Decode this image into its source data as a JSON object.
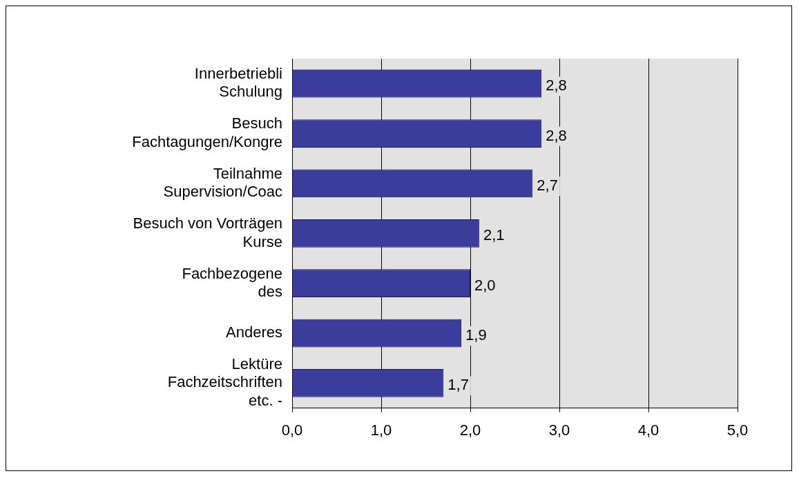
{
  "chart_data": {
    "type": "bar",
    "orientation": "horizontal",
    "categories": [
      "Innerbetriebli\nSchulung",
      "Besuch\nFachtagungen/Kongre",
      "Teilnahme\nSupervision/Coac",
      "Besuch von Vorträgen\nKurse",
      "Fachbezogene\ndes",
      "Anderes",
      "Lektüre\nFachzeitschriften\netc. -"
    ],
    "values": [
      2.8,
      2.8,
      2.7,
      2.1,
      2.0,
      1.9,
      1.7
    ],
    "value_labels": [
      "2,8",
      "2,8",
      "2,7",
      "2,1",
      "2,0",
      "1,9",
      "1,7"
    ],
    "color": "#3c3c9c",
    "xlim": [
      0,
      5
    ],
    "xticks": [
      {
        "value": 0,
        "label": "0,0"
      },
      {
        "value": 1,
        "label": "1,0"
      },
      {
        "value": 2,
        "label": "2,0"
      },
      {
        "value": 3,
        "label": "3,0"
      },
      {
        "value": 4,
        "label": "4,0"
      },
      {
        "value": 5,
        "label": "5,0"
      }
    ],
    "grid": "x",
    "legend": false
  }
}
